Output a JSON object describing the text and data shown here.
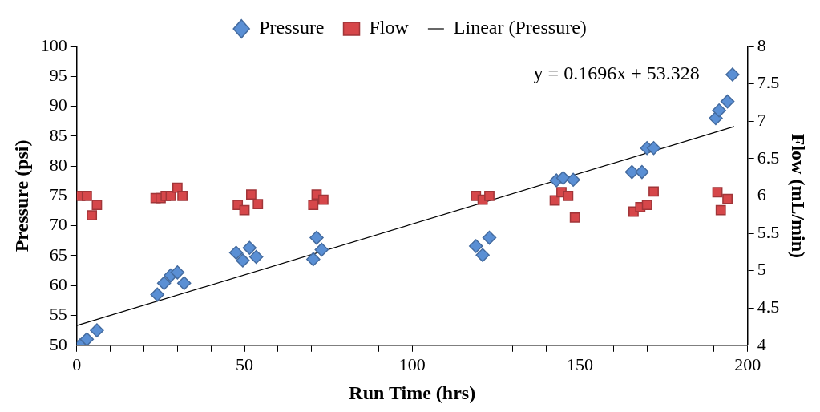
{
  "chart_data": {
    "type": "scatter",
    "xlabel": "Run Time (hrs)",
    "ylabel": "Pressure (psi)",
    "y2label": "Flow (mL/min)",
    "annotations": [
      "y = 0.1696x + 53.328"
    ],
    "series": [
      {
        "name": "Pressure",
        "marker": "diamond",
        "color": "#5a8fd4",
        "x": [
          1,
          3,
          6,
          24,
          26,
          28,
          30,
          32,
          47.5,
          49.5,
          51.5,
          53.5,
          70.5,
          71.5,
          73,
          119,
          121,
          123,
          143,
          145,
          148,
          165.5,
          168.5,
          170,
          172,
          190.5,
          191.5,
          194,
          195.5
        ],
        "values": [
          50,
          51,
          52.5,
          58.5,
          60.4,
          61.7,
          62.2,
          60.4,
          65.5,
          64.2,
          66.3,
          64.8,
          64.4,
          68,
          66,
          66.6,
          65.1,
          68,
          77.6,
          78,
          77.7,
          79,
          79,
          83,
          83,
          88,
          89.3,
          90.8,
          95.3
        ]
      },
      {
        "name": "Flow",
        "marker": "square",
        "axis": "y2",
        "color": "#d6474a",
        "x": [
          1,
          3,
          4.5,
          6,
          23.5,
          25,
          26.5,
          28,
          30,
          31.5,
          48,
          50,
          52,
          54,
          70.5,
          71.5,
          73.5,
          119,
          121,
          123,
          142.5,
          144.5,
          146.5,
          148.5,
          166,
          168,
          170,
          172,
          191,
          192,
          194
        ],
        "values": [
          6,
          6,
          5.74,
          5.88,
          5.97,
          5.97,
          6,
          6,
          6.11,
          6,
          5.88,
          5.81,
          6.02,
          5.89,
          5.88,
          6.02,
          5.95,
          6,
          5.95,
          6,
          5.94,
          6.05,
          6,
          5.71,
          5.79,
          5.85,
          5.88,
          6.06,
          6.05,
          5.81,
          5.96
        ]
      },
      {
        "name": "Linear (Pressure)",
        "type": "line",
        "marker": "none",
        "color": "#000000",
        "x": [
          0,
          196
        ],
        "values": [
          53.3,
          86.6
        ]
      }
    ],
    "xlim": [
      0,
      200
    ],
    "xticks": [
      0,
      {
        "value": 10,
        "label": null
      },
      {
        "value": 20,
        "label": null
      },
      {
        "value": 30,
        "label": null
      },
      {
        "value": 40,
        "label": null
      },
      50,
      {
        "value": 60,
        "label": null
      },
      {
        "value": 70,
        "label": null
      },
      {
        "value": 80,
        "label": null
      },
      {
        "value": 90,
        "label": null
      },
      100,
      {
        "value": 110,
        "label": null
      },
      {
        "value": 120,
        "label": null
      },
      {
        "value": 130,
        "label": null
      },
      {
        "value": 140,
        "label": null
      },
      150,
      {
        "value": 160,
        "label": null
      },
      {
        "value": 170,
        "label": null
      },
      {
        "value": 180,
        "label": null
      },
      {
        "value": 190,
        "label": null
      },
      200
    ],
    "ylim": [
      50,
      100
    ],
    "yticks": [
      50,
      55,
      60,
      65,
      70,
      75,
      80,
      85,
      90,
      95,
      100
    ],
    "y2lim": [
      4,
      8
    ],
    "y2ticks": [
      4,
      4.5,
      5,
      5.5,
      6,
      6.5,
      7,
      7.5,
      8
    ],
    "grid": false,
    "legend": "top"
  }
}
